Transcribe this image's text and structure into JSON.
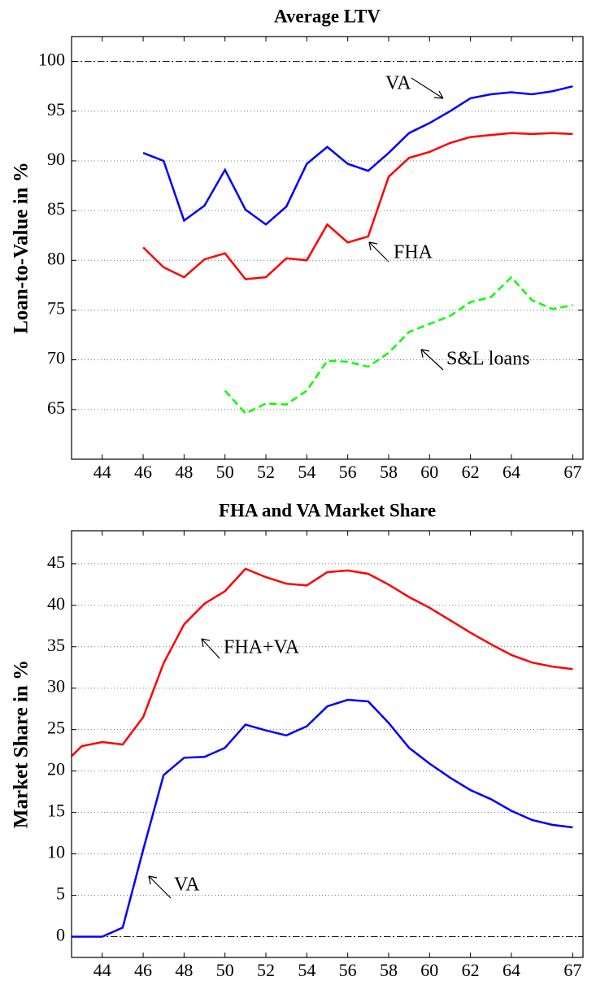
{
  "chart_data": [
    {
      "type": "line",
      "title": "Average LTV",
      "ylabel": "Loan-to-Value in %",
      "xlim": [
        42.5,
        67.5
      ],
      "xticks": [
        44,
        46,
        48,
        50,
        52,
        54,
        56,
        58,
        60,
        62,
        64,
        67
      ],
      "ylim": [
        60,
        102.5
      ],
      "yticks": [
        65,
        70,
        75,
        80,
        85,
        90,
        95,
        100
      ],
      "grid": true,
      "hline": 100,
      "annotations": [
        "VA",
        "FHA",
        "S&L loans"
      ],
      "series": [
        {
          "name": "VA",
          "color": "#0000ff",
          "style": "solid",
          "x": [
            46,
            47,
            48,
            49,
            50,
            51,
            52,
            53,
            54,
            55,
            56,
            57,
            58,
            59,
            60,
            61,
            62,
            63,
            64,
            65,
            66,
            67
          ],
          "values": [
            90.8,
            90,
            84,
            85.5,
            89.1,
            85.1,
            83.6,
            85.4,
            89.7,
            91.4,
            89.7,
            89,
            90.8,
            92.8,
            93.8,
            95,
            96.3,
            96.7,
            96.9,
            96.7,
            97,
            97.5
          ]
        },
        {
          "name": "FHA",
          "color": "#ff0000",
          "style": "solid",
          "x": [
            46,
            47,
            48,
            49,
            50,
            51,
            52,
            53,
            54,
            55,
            56,
            57,
            58,
            59,
            60,
            61,
            62,
            63,
            64,
            65,
            66,
            67
          ],
          "values": [
            81.3,
            79.3,
            78.3,
            80.1,
            80.7,
            78.1,
            78.3,
            80.2,
            80,
            83.6,
            81.8,
            82.4,
            88.4,
            90.3,
            90.9,
            91.8,
            92.4,
            92.6,
            92.8,
            92.7,
            92.8,
            92.7
          ]
        },
        {
          "name": "S&L loans",
          "color": "#00ff00",
          "style": "dashed",
          "x": [
            50,
            51,
            52,
            53,
            54,
            55,
            56,
            57,
            58,
            59,
            60,
            61,
            62,
            63,
            64,
            65,
            66,
            67
          ],
          "values": [
            66.9,
            64.6,
            65.6,
            65.5,
            66.9,
            69.9,
            69.8,
            69.3,
            70.7,
            72.8,
            73.6,
            74.4,
            75.8,
            76.3,
            78.3,
            76,
            75.1,
            75.5
          ]
        }
      ]
    },
    {
      "type": "line",
      "title": "FHA and VA Market Share",
      "ylabel": "Market Share in %",
      "xlim": [
        42.5,
        67.5
      ],
      "xticks": [
        44,
        46,
        48,
        50,
        52,
        54,
        56,
        58,
        60,
        62,
        64,
        67
      ],
      "ylim": [
        -2.5,
        49
      ],
      "yticks": [
        0,
        5,
        10,
        15,
        20,
        25,
        30,
        35,
        40,
        45
      ],
      "grid": true,
      "hline": 0,
      "annotations": [
        "FHA+VA",
        "VA"
      ],
      "series": [
        {
          "name": "FHA+VA",
          "color": "#ff0000",
          "style": "solid",
          "x": [
            42.5,
            43,
            44,
            45,
            46,
            47,
            48,
            49,
            50,
            51,
            52,
            53,
            54,
            55,
            56,
            57,
            58,
            59,
            60,
            61,
            62,
            63,
            64,
            65,
            66,
            67
          ],
          "values": [
            21.8,
            23,
            23.5,
            23.2,
            26.5,
            33,
            37.7,
            40.2,
            41.7,
            44.4,
            43.4,
            42.6,
            42.4,
            44,
            44.2,
            43.8,
            42.5,
            41,
            39.7,
            38.2,
            36.7,
            35.3,
            34,
            33.1,
            32.6,
            32.3
          ]
        },
        {
          "name": "VA",
          "color": "#0000ff",
          "style": "solid",
          "x": [
            42.5,
            43,
            44,
            45,
            46,
            47,
            48,
            49,
            50,
            51,
            52,
            53,
            54,
            55,
            56,
            57,
            58,
            59,
            60,
            61,
            62,
            63,
            64,
            65,
            66,
            67
          ],
          "values": [
            0,
            0,
            0,
            1.1,
            10.5,
            19.5,
            21.6,
            21.7,
            22.8,
            25.6,
            24.9,
            24.3,
            25.4,
            27.8,
            28.6,
            28.4,
            25.8,
            22.8,
            20.9,
            19.2,
            17.7,
            16.6,
            15.2,
            14.1,
            13.5,
            13.2
          ]
        }
      ]
    }
  ]
}
